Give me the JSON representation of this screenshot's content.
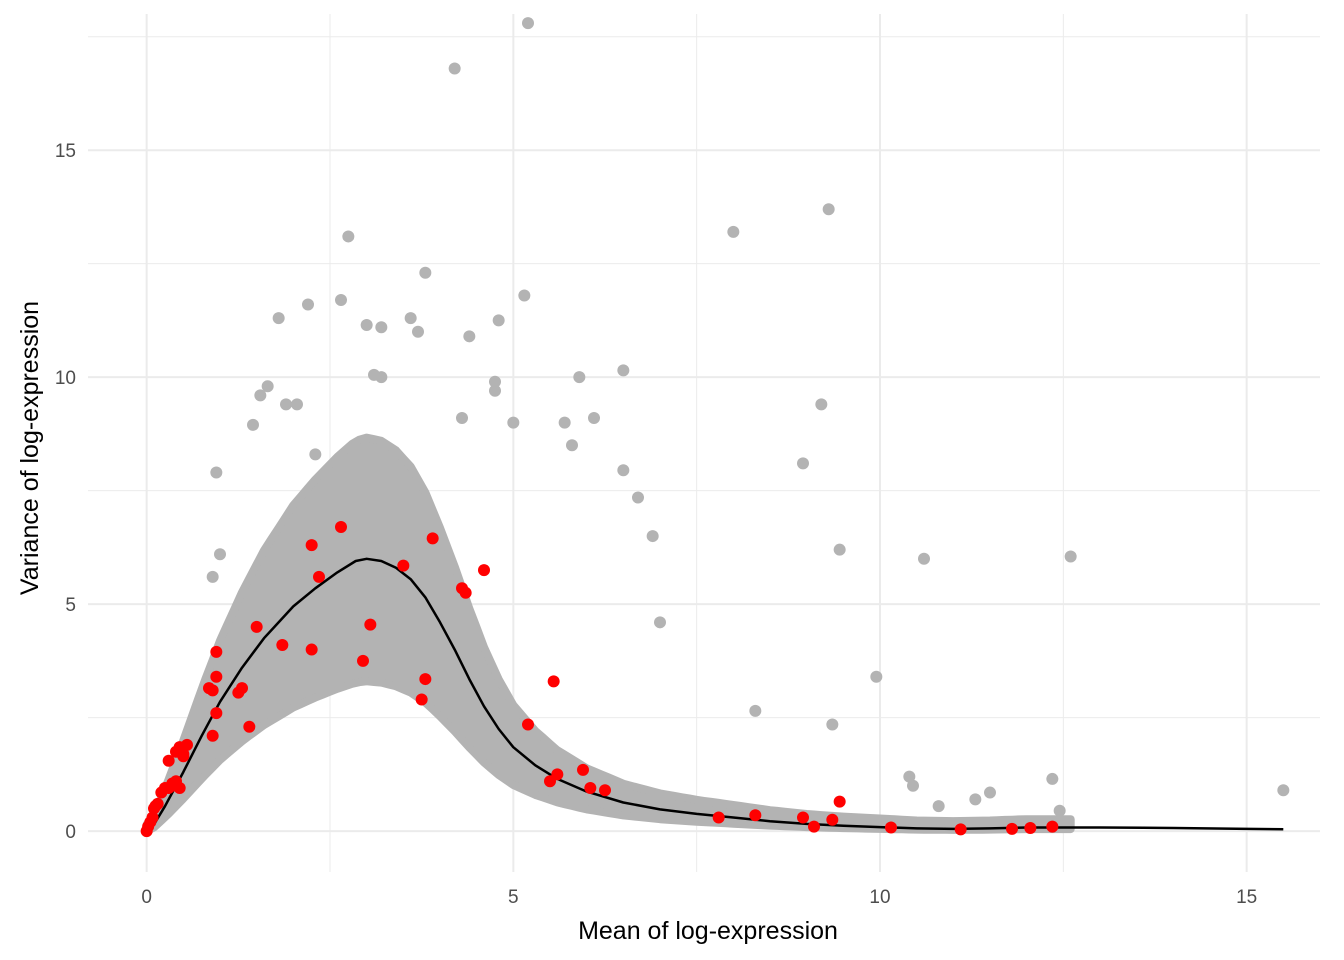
{
  "chart_data": {
    "type": "scatter",
    "xlabel": "Mean of log-expression",
    "ylabel": "Variance of log-expression",
    "xlim": [
      -0.8,
      16.0
    ],
    "ylim": [
      -0.9,
      18.0
    ],
    "x_ticks": [
      0,
      5,
      10,
      15
    ],
    "x_tick_labels": [
      "0",
      "5",
      "10",
      "15"
    ],
    "y_ticks": [
      0,
      5,
      10,
      15
    ],
    "y_tick_labels": [
      "0",
      "5",
      "10",
      "15"
    ],
    "grid": true,
    "legend": "none",
    "colors": {
      "background_points": "#b3b3b3",
      "highlight_points": "#ff0000",
      "trend_line": "#000000",
      "grid": "#ebebeb"
    },
    "series": [
      {
        "kind": "background-points",
        "color": "#b3b3b3",
        "x": [
          5.2,
          4.2,
          9.3,
          2.75,
          8.0,
          3.8,
          2.2,
          2.65,
          5.15,
          1.8,
          3.0,
          3.2,
          3.6,
          4.8,
          4.4,
          3.7,
          6.5,
          5.9,
          3.2,
          4.75,
          4.75,
          1.65,
          1.55,
          1.9,
          2.05,
          1.45,
          0.95,
          9.2,
          8.95,
          9.45,
          10.6,
          12.6,
          9.95,
          9.35,
          8.3,
          7.0,
          6.9,
          6.5,
          6.7,
          6.1,
          15.5,
          12.35,
          12.45,
          11.5,
          11.3,
          10.8,
          10.45,
          10.4,
          5.7,
          5.8,
          3.1,
          2.3,
          4.3,
          5.0,
          0.9,
          1.0
        ],
        "y": [
          17.8,
          16.8,
          13.7,
          13.1,
          13.2,
          12.3,
          11.6,
          11.7,
          11.8,
          11.3,
          11.15,
          11.1,
          11.3,
          11.25,
          10.9,
          11.0,
          10.15,
          10.0,
          10.0,
          9.9,
          9.7,
          9.8,
          9.6,
          9.4,
          9.4,
          8.95,
          7.9,
          9.4,
          8.1,
          6.2,
          6.0,
          6.05,
          3.4,
          2.35,
          2.65,
          4.6,
          6.5,
          7.95,
          7.35,
          9.1,
          0.9,
          1.15,
          0.45,
          0.85,
          0.7,
          0.55,
          1.0,
          1.2,
          9.0,
          8.5,
          10.05,
          8.3,
          9.1,
          9.0,
          5.6,
          6.1
        ]
      },
      {
        "kind": "highlighted-points",
        "color": "#ff0000",
        "x": [
          0.0,
          0.02,
          0.05,
          0.08,
          0.1,
          0.12,
          0.15,
          0.2,
          0.25,
          0.3,
          0.35,
          0.4,
          0.45,
          0.5,
          0.55,
          0.4,
          0.45,
          0.5,
          0.3,
          0.35,
          0.95,
          0.85,
          0.95,
          0.9,
          0.95,
          0.9,
          1.25,
          1.3,
          1.4,
          1.5,
          1.85,
          2.25,
          2.25,
          2.35,
          2.65,
          2.95,
          3.05,
          3.5,
          3.9,
          3.75,
          3.8,
          4.3,
          4.35,
          4.6,
          5.2,
          5.5,
          5.55,
          5.6,
          5.95,
          6.05,
          6.25,
          7.8,
          8.3,
          8.95,
          9.1,
          9.35,
          9.45,
          10.15,
          11.1,
          11.8,
          12.05,
          12.35
        ],
        "y": [
          0.0,
          0.1,
          0.2,
          0.3,
          0.5,
          0.55,
          0.6,
          0.85,
          0.95,
          1.55,
          1.0,
          1.1,
          0.95,
          1.7,
          1.9,
          1.75,
          1.85,
          1.65,
          0.95,
          1.05,
          3.95,
          3.15,
          3.4,
          2.1,
          2.6,
          3.1,
          3.05,
          3.15,
          2.3,
          4.5,
          4.1,
          6.3,
          4.0,
          5.6,
          6.7,
          3.75,
          4.55,
          5.85,
          6.45,
          2.9,
          3.35,
          5.35,
          5.25,
          5.75,
          2.35,
          1.1,
          3.3,
          1.25,
          1.35,
          0.95,
          0.9,
          0.3,
          0.35,
          0.3,
          0.1,
          0.25,
          0.65,
          0.08,
          0.04,
          0.05,
          0.07,
          0.1
        ]
      },
      {
        "kind": "trend-line",
        "color": "#000000",
        "x": [
          0.0,
          0.1,
          0.25,
          0.5,
          0.75,
          1.0,
          1.3,
          1.6,
          2.0,
          2.3,
          2.6,
          2.85,
          3.0,
          3.2,
          3.4,
          3.6,
          3.8,
          4.0,
          4.2,
          4.4,
          4.6,
          4.8,
          5.0,
          5.3,
          5.6,
          6.0,
          6.5,
          7.0,
          7.5,
          8.0,
          8.5,
          9.0,
          9.5,
          10.0,
          10.5,
          11.0,
          11.5,
          12.0,
          13.0,
          14.0,
          15.0,
          15.5
        ],
        "y": [
          0.0,
          0.15,
          0.55,
          1.3,
          2.1,
          2.85,
          3.6,
          4.25,
          4.95,
          5.35,
          5.7,
          5.95,
          6.0,
          5.95,
          5.8,
          5.55,
          5.15,
          4.6,
          4.0,
          3.35,
          2.75,
          2.25,
          1.85,
          1.45,
          1.15,
          0.87,
          0.63,
          0.48,
          0.38,
          0.3,
          0.22,
          0.16,
          0.12,
          0.09,
          0.06,
          0.05,
          0.06,
          0.08,
          0.08,
          0.07,
          0.05,
          0.04
        ]
      }
    ]
  }
}
